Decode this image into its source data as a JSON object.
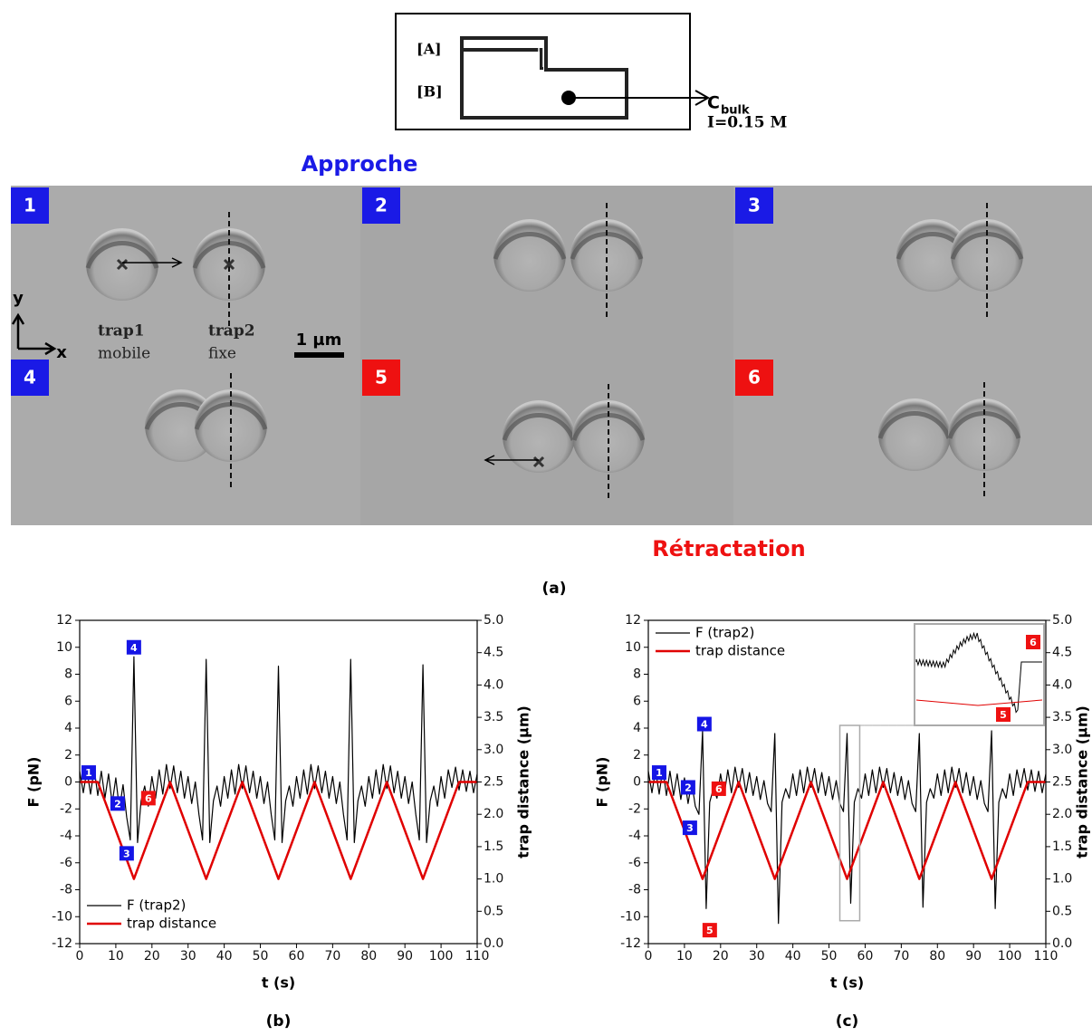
{
  "figure": {
    "schematic": {
      "layer_a": "[A]",
      "layer_b": "[B]",
      "concentration": "C",
      "concentration_sub": "bulk",
      "ionic_strength": "I=0.15 M"
    },
    "approach_title": "Approche",
    "retraction_title": "Rétractation",
    "panel_label": "(a)",
    "frames": [
      "1",
      "2",
      "3",
      "4",
      "5",
      "6"
    ],
    "image_labels": {
      "trap1": "trap1",
      "trap1_state": "mobile",
      "trap2": "trap2",
      "trap2_state": "fixe",
      "scale_bar": "1 µm",
      "axis_y": "y",
      "axis_x": "x"
    }
  },
  "chart_data": [
    {
      "type": "line",
      "panel": "(b)",
      "xlabel": "t (s)",
      "ylabel": "F (pN)",
      "y2label": "trap distance (µm)",
      "xlim": [
        0,
        110
      ],
      "xticks": [
        0,
        10,
        20,
        30,
        40,
        50,
        60,
        70,
        80,
        90,
        100,
        110
      ],
      "ylim": [
        -12,
        12
      ],
      "yticks": [
        -12,
        -10,
        -8,
        -6,
        -4,
        -2,
        0,
        2,
        4,
        6,
        8,
        10,
        12
      ],
      "y2lim": [
        0,
        5
      ],
      "y2ticks": [
        {
          "value": 0,
          "label": "0.0"
        },
        {
          "value": 0.5,
          "label": "0.5"
        },
        {
          "value": 1,
          "label": "1.0"
        },
        {
          "value": 1.5,
          "label": "1.5"
        },
        {
          "value": 2,
          "label": "2.0"
        },
        {
          "value": 2.5,
          "label": "2.5"
        },
        {
          "value": 3,
          "label": "3.0"
        },
        {
          "value": 3.5,
          "label": "3.5"
        },
        {
          "value": 4,
          "label": "4.0"
        },
        {
          "value": 4.5,
          "label": "4.5"
        },
        {
          "value": 5,
          "label": "5.0"
        }
      ],
      "legend": "lower left",
      "series": [
        {
          "name": "F (trap2)",
          "color": "#000000",
          "x": [
            0,
            1,
            2,
            3,
            4,
            5,
            6,
            7,
            8,
            9,
            10,
            11,
            12,
            13,
            14,
            15,
            16,
            17,
            18,
            19,
            20,
            21,
            22,
            23,
            24,
            25,
            26,
            27,
            28,
            29,
            30,
            31,
            32,
            33,
            34,
            35,
            36,
            37,
            38,
            39,
            40,
            41,
            42,
            43,
            44,
            45,
            46,
            47,
            48,
            49,
            50,
            51,
            52,
            53,
            54,
            55,
            56,
            57,
            58,
            59,
            60,
            61,
            62,
            63,
            64,
            65,
            66,
            67,
            68,
            69,
            70,
            71,
            72,
            73,
            74,
            75,
            76,
            77,
            78,
            79,
            80,
            81,
            82,
            83,
            84,
            85,
            86,
            87,
            88,
            89,
            90,
            91,
            92,
            93,
            94,
            95,
            96,
            97,
            98,
            99,
            100,
            101,
            102,
            103,
            104,
            105,
            106,
            107,
            108,
            109,
            110
          ],
          "values": [
            0.8,
            -0.8,
            0.9,
            -0.9,
            1,
            -1,
            0.8,
            -1.2,
            0.6,
            -1.6,
            0.3,
            -2,
            -0.2,
            -2.6,
            -4.3,
            9.3,
            -4.5,
            -1.4,
            -0.3,
            -1.8,
            0.4,
            -1.2,
            0.9,
            -0.9,
            1.3,
            -0.5,
            1.2,
            -0.8,
            0.8,
            -1.2,
            0.4,
            -1.6,
            0,
            -2.4,
            -4.3,
            9.1,
            -4.5,
            -1.4,
            -0.3,
            -1.8,
            0.4,
            -1.2,
            0.9,
            -0.9,
            1.3,
            -0.5,
            1.2,
            -0.8,
            0.8,
            -1.2,
            0.4,
            -1.6,
            0,
            -2.4,
            -4.3,
            8.6,
            -4.5,
            -1.4,
            -0.3,
            -1.8,
            0.4,
            -1.2,
            0.9,
            -0.9,
            1.3,
            -0.5,
            1.2,
            -0.8,
            0.8,
            -1.2,
            0.4,
            -1.6,
            0,
            -2.4,
            -4.3,
            9.1,
            -4.5,
            -1.4,
            -0.3,
            -1.8,
            0.4,
            -1.2,
            0.9,
            -0.9,
            1.3,
            -0.5,
            1.2,
            -0.8,
            0.8,
            -1.2,
            0.4,
            -1.6,
            0,
            -2.4,
            -4.3,
            8.7,
            -4.5,
            -1.4,
            -0.3,
            -1.8,
            0.4,
            -1.2,
            0.9,
            -0.4,
            1.1,
            -0.6,
            0.9,
            -0.7,
            0.8,
            -0.8,
            0.6
          ]
        },
        {
          "name": "trap distance",
          "color": "#e00000",
          "axis": "y2",
          "x": [
            0,
            5,
            15,
            25,
            35,
            45,
            55,
            65,
            75,
            85,
            95,
            105,
            110
          ],
          "values": [
            2.5,
            2.5,
            1,
            2.5,
            1,
            2.5,
            1,
            2.5,
            1,
            2.5,
            1,
            2.5,
            2.5
          ]
        }
      ],
      "annotations": [
        {
          "text": "1",
          "x": 2.5,
          "y": 0.7,
          "color": "#1515e6"
        },
        {
          "text": "2",
          "x": 10.5,
          "y": -1.6,
          "color": "#1515e6"
        },
        {
          "text": "3",
          "x": 13,
          "y": -5.3,
          "color": "#1515e6"
        },
        {
          "text": "4",
          "x": 15,
          "y": 10,
          "color": "#1515e6"
        },
        {
          "text": "6",
          "x": 19,
          "y": -1.2,
          "color": "#ee1111"
        }
      ]
    },
    {
      "type": "line",
      "panel": "(c)",
      "xlabel": "t (s)",
      "ylabel": "F (pN)",
      "y2label": "trap distance (µm)",
      "xlim": [
        0,
        110
      ],
      "xticks": [
        0,
        10,
        20,
        30,
        40,
        50,
        60,
        70,
        80,
        90,
        100,
        110
      ],
      "ylim": [
        -12,
        12
      ],
      "yticks": [
        -12,
        -10,
        -8,
        -6,
        -4,
        -2,
        0,
        2,
        4,
        6,
        8,
        10,
        12
      ],
      "y2lim": [
        0,
        5
      ],
      "y2ticks": [
        {
          "value": 0,
          "label": "0.0"
        },
        {
          "value": 0.5,
          "label": "0.5"
        },
        {
          "value": 1,
          "label": "1.0"
        },
        {
          "value": 1.5,
          "label": "1.5"
        },
        {
          "value": 2,
          "label": "2.0"
        },
        {
          "value": 2.5,
          "label": "2.5"
        },
        {
          "value": 3,
          "label": "3.0"
        },
        {
          "value": 3.5,
          "label": "3.5"
        },
        {
          "value": 4,
          "label": "4.0"
        },
        {
          "value": 4.5,
          "label": "4.5"
        },
        {
          "value": 5,
          "label": "5.0"
        }
      ],
      "legend": "upper left",
      "series": [
        {
          "name": "F (trap2)",
          "color": "#000000",
          "x": [
            0,
            1,
            2,
            3,
            4,
            5,
            6,
            7,
            8,
            9,
            10,
            11,
            12,
            13,
            14,
            15,
            16,
            17,
            18,
            19,
            20,
            21,
            22,
            23,
            24,
            25,
            26,
            27,
            28,
            29,
            30,
            31,
            32,
            33,
            34,
            35,
            36,
            37,
            38,
            39,
            40,
            41,
            42,
            43,
            44,
            45,
            46,
            47,
            48,
            49,
            50,
            51,
            52,
            53,
            54,
            55,
            56,
            57,
            58,
            59,
            60,
            61,
            62,
            63,
            64,
            65,
            66,
            67,
            68,
            69,
            70,
            71,
            72,
            73,
            74,
            75,
            76,
            77,
            78,
            79,
            80,
            81,
            82,
            83,
            84,
            85,
            86,
            87,
            88,
            89,
            90,
            91,
            92,
            93,
            94,
            95,
            96,
            97,
            98,
            99,
            100,
            101,
            102,
            103,
            104,
            105,
            106,
            107,
            108,
            109,
            110
          ],
          "values": [
            0.8,
            -0.8,
            0.9,
            -0.9,
            1,
            -1,
            0.8,
            -1,
            0.6,
            -1.3,
            0.3,
            -1.6,
            0,
            -1.8,
            -2.4,
            3.8,
            -9.4,
            -1.5,
            -0.5,
            -1.2,
            0.6,
            -1,
            0.9,
            -0.8,
            1.1,
            -0.4,
            1,
            -0.8,
            0.7,
            -1,
            0.4,
            -1.3,
            0.1,
            -1.6,
            -2.2,
            3.6,
            -10.5,
            -1.5,
            -0.5,
            -1.2,
            0.6,
            -1,
            0.9,
            -0.8,
            1.1,
            -0.4,
            1,
            -0.8,
            0.7,
            -1,
            0.4,
            -1.3,
            0.1,
            -1.6,
            -2.2,
            3.6,
            -9,
            -1.5,
            -0.5,
            -1.2,
            0.6,
            -1,
            0.9,
            -0.8,
            1.1,
            -0.4,
            1,
            -0.8,
            0.7,
            -1,
            0.4,
            -1.3,
            0.1,
            -1.6,
            -2.2,
            3.6,
            -9.3,
            -1.5,
            -0.5,
            -1.2,
            0.6,
            -1,
            0.9,
            -0.8,
            1.1,
            -0.4,
            1,
            -0.8,
            0.7,
            -1,
            0.4,
            -1.3,
            0.1,
            -1.6,
            -2.2,
            3.8,
            -9.4,
            -1.5,
            -0.5,
            -1.2,
            0.6,
            -1,
            0.9,
            -0.4,
            1,
            -0.6,
            0.9,
            -0.7,
            0.8,
            -0.8,
            0.6
          ]
        },
        {
          "name": "trap distance",
          "color": "#e00000",
          "axis": "y2",
          "x": [
            0,
            5,
            15,
            25,
            35,
            45,
            55,
            65,
            75,
            85,
            95,
            105,
            110
          ],
          "values": [
            2.5,
            2.5,
            1,
            2.5,
            1,
            2.5,
            1,
            2.5,
            1,
            2.5,
            1,
            2.5,
            2.5
          ]
        }
      ],
      "annotations": [
        {
          "text": "1",
          "x": 3,
          "y": 0.7,
          "color": "#1515e6"
        },
        {
          "text": "2",
          "x": 11,
          "y": -0.4,
          "color": "#1515e6"
        },
        {
          "text": "3",
          "x": 11.5,
          "y": -3.4,
          "color": "#1515e6"
        },
        {
          "text": "4",
          "x": 15.5,
          "y": 4.3,
          "color": "#1515e6"
        },
        {
          "text": "6",
          "x": 19.5,
          "y": -0.5,
          "color": "#ee1111"
        },
        {
          "text": "5",
          "x": 17,
          "y": -11,
          "color": "#ee1111"
        }
      ],
      "inset": {
        "labels": [
          "6",
          "5"
        ]
      }
    }
  ]
}
